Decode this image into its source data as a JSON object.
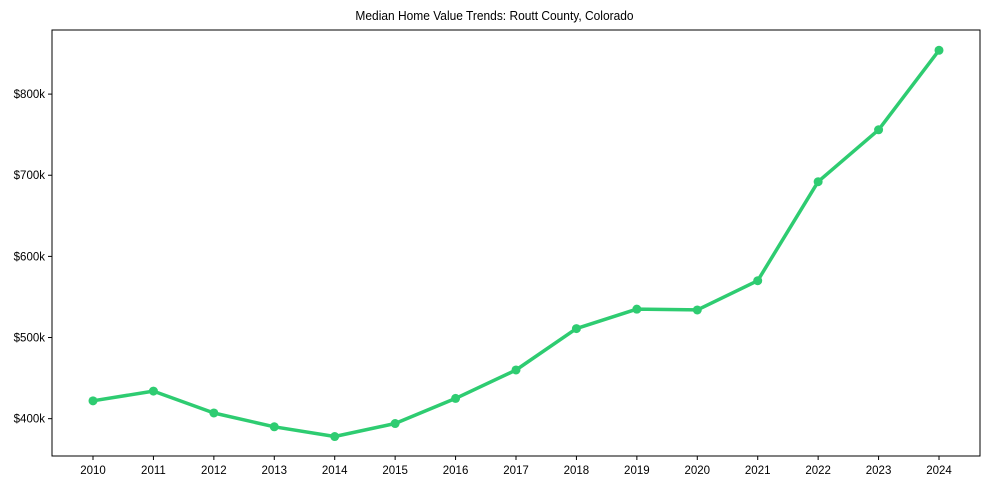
{
  "chart_data": {
    "type": "line",
    "title": "Median Home Value Trends: Routt County, Colorado",
    "xlabel": "",
    "ylabel": "",
    "x": [
      "2010",
      "2011",
      "2012",
      "2013",
      "2014",
      "2015",
      "2016",
      "2017",
      "2018",
      "2019",
      "2020",
      "2021",
      "2022",
      "2023",
      "2024"
    ],
    "series": [
      {
        "name": "Median Home Value",
        "color": "#2ecc71",
        "values": [
          422000,
          434000,
          407000,
          390000,
          378000,
          394000,
          425000,
          460000,
          511000,
          535000,
          534000,
          570000,
          692000,
          756000,
          854000
        ]
      }
    ],
    "yticks": [
      400000,
      500000,
      600000,
      700000,
      800000
    ],
    "ytick_labels": [
      "$400k",
      "$500k",
      "$600k",
      "$700k",
      "$800k"
    ],
    "ylim": [
      354000,
      879000
    ],
    "grid": false,
    "legend": null
  }
}
